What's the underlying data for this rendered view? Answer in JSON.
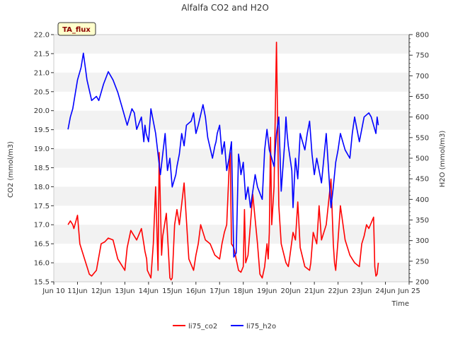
{
  "chart_data": {
    "type": "line",
    "title": "Alfalfa CO2 and H2O",
    "badge": "TA_flux",
    "xlabel": "Time",
    "ylabel_left": "CO2 (mmol/m3)",
    "ylabel_right": "H2O (mmol/m3)",
    "x_ticks": [
      "Jun 10",
      "11Jun",
      "12Jun",
      "13Jun",
      "14Jun",
      "15Jun",
      "16Jun",
      "17Jun",
      "18Jun",
      "19Jun",
      "20Jun",
      "21Jun",
      "22Jun",
      "23Jun",
      "24Jun",
      "Jun 25"
    ],
    "x_tick_days": [
      9.7,
      10.7,
      11.7,
      12.7,
      13.7,
      14.7,
      15.7,
      16.7,
      17.7,
      18.7,
      19.7,
      20.7,
      21.7,
      22.7,
      23.7,
      24.7
    ],
    "xlim": [
      9.7,
      24.7
    ],
    "ylim_left": [
      15.5,
      22.0
    ],
    "yticks_left": [
      "15.5",
      "16.0",
      "16.5",
      "17.0",
      "17.5",
      "18.0",
      "18.5",
      "19.0",
      "19.5",
      "20.0",
      "20.5",
      "21.0",
      "21.5",
      "22.0"
    ],
    "ylim_right": [
      200,
      800
    ],
    "yticks_right": [
      "200",
      "250",
      "300",
      "350",
      "400",
      "450",
      "500",
      "550",
      "600",
      "650",
      "700",
      "750",
      "800"
    ],
    "grid": "horizontal bands",
    "legend_position": "bottom-center",
    "colors": {
      "li75_co2": "#ff0000",
      "li75_h2o": "#0000ff",
      "band": "#f2f2f2",
      "badge_bg": "#ffffcc",
      "badge_text": "#8b0000"
    },
    "series": [
      {
        "name": "li75_co2",
        "axis": "left",
        "x": [
          10.3,
          10.4,
          10.5,
          10.55,
          10.7,
          10.8,
          11.0,
          11.2,
          11.3,
          11.5,
          11.7,
          11.85,
          12.0,
          12.2,
          12.4,
          12.7,
          12.8,
          12.95,
          13.1,
          13.2,
          13.4,
          13.5,
          13.55,
          13.62,
          13.65,
          13.8,
          13.9,
          14.0,
          14.1,
          14.15,
          14.25,
          14.3,
          14.45,
          14.6,
          14.65,
          14.7,
          14.75,
          14.8,
          14.9,
          15.0,
          15.2,
          15.4,
          15.6,
          15.7,
          15.8,
          15.9,
          16.1,
          16.3,
          16.5,
          16.7,
          16.8,
          16.9,
          17.0,
          17.1,
          17.15,
          17.2,
          17.3,
          17.5,
          17.6,
          17.7,
          17.75,
          17.8,
          17.9,
          18.1,
          18.3,
          18.4,
          18.5,
          18.6,
          18.7,
          18.75,
          18.8,
          18.85,
          18.9,
          19.0,
          19.1,
          19.2,
          19.3,
          19.5,
          19.6,
          19.65,
          19.8,
          19.9,
          20.0,
          20.1,
          20.3,
          20.5,
          20.55,
          20.65,
          20.8,
          20.9,
          21.0,
          21.2,
          21.4,
          21.5,
          21.55,
          21.6,
          21.7,
          21.8,
          22.0,
          22.2,
          22.4,
          22.6,
          22.7,
          22.8,
          22.9,
          23.0,
          23.2,
          23.25,
          23.3,
          23.35,
          23.4
        ],
        "values": [
          17.0,
          17.1,
          17.0,
          16.9,
          17.25,
          16.5,
          16.1,
          15.7,
          15.65,
          15.8,
          16.5,
          16.55,
          16.65,
          16.6,
          16.1,
          15.8,
          16.4,
          16.85,
          16.7,
          16.6,
          16.9,
          16.5,
          16.3,
          16.1,
          15.8,
          15.6,
          16.5,
          18.0,
          15.8,
          18.9,
          16.2,
          16.7,
          17.3,
          15.6,
          15.55,
          15.6,
          16.3,
          17.0,
          17.4,
          17.0,
          18.1,
          16.1,
          15.8,
          16.2,
          16.5,
          17.0,
          16.6,
          16.5,
          16.2,
          16.1,
          16.5,
          16.8,
          17.0,
          18.5,
          18.9,
          16.5,
          16.4,
          15.8,
          15.75,
          15.9,
          17.4,
          16.0,
          16.2,
          17.8,
          16.5,
          15.7,
          15.6,
          15.9,
          16.5,
          16.1,
          16.8,
          19.3,
          17.0,
          18.0,
          21.8,
          17.5,
          16.5,
          16.0,
          15.9,
          16.1,
          16.8,
          16.6,
          17.6,
          16.4,
          15.9,
          15.8,
          16.0,
          16.8,
          16.5,
          17.5,
          16.6,
          17.0,
          18.2,
          16.5,
          16.0,
          15.8,
          16.6,
          17.5,
          16.6,
          16.2,
          16.0,
          15.9,
          16.5,
          16.7,
          17.0,
          16.9,
          17.2,
          15.9,
          15.65,
          15.7,
          16.0
        ],
        "shape_notes": "daily cycle"
      },
      {
        "name": "li75_h2o",
        "axis": "right",
        "x": [
          10.3,
          10.4,
          10.5,
          10.7,
          10.85,
          10.95,
          11.1,
          11.3,
          11.5,
          11.6,
          11.8,
          12.0,
          12.2,
          12.4,
          12.6,
          12.7,
          12.8,
          13.0,
          13.1,
          13.2,
          13.4,
          13.5,
          13.55,
          13.6,
          13.7,
          13.8,
          14.0,
          14.2,
          14.3,
          14.4,
          14.5,
          14.6,
          14.7,
          14.85,
          14.9,
          15.0,
          15.1,
          15.2,
          15.3,
          15.5,
          15.6,
          15.7,
          15.8,
          16.0,
          16.1,
          16.2,
          16.4,
          16.5,
          16.55,
          16.6,
          16.7,
          16.8,
          16.9,
          17.0,
          17.1,
          17.2,
          17.3,
          17.4,
          17.5,
          17.55,
          17.6,
          17.7,
          17.8,
          17.9,
          18.0,
          18.2,
          18.3,
          18.5,
          18.6,
          18.7,
          18.8,
          19.0,
          19.1,
          19.2,
          19.3,
          19.45,
          19.5,
          19.55,
          19.6,
          19.75,
          19.8,
          19.9,
          20.0,
          20.1,
          20.2,
          20.3,
          20.4,
          20.5,
          20.6,
          20.7,
          20.8,
          21.0,
          21.2,
          21.4,
          21.5,
          21.6,
          21.7,
          21.8,
          22.0,
          22.2,
          22.3,
          22.4,
          22.6,
          22.8,
          23.0,
          23.1,
          23.2,
          23.3,
          23.35,
          23.4
        ],
        "values": [
          570,
          600,
          620,
          690,
          720,
          755,
          690,
          640,
          650,
          640,
          680,
          710,
          690,
          660,
          620,
          600,
          580,
          620,
          610,
          570,
          600,
          540,
          580,
          560,
          540,
          620,
          560,
          460,
          510,
          560,
          470,
          500,
          430,
          460,
          480,
          510,
          560,
          530,
          580,
          590,
          610,
          560,
          580,
          630,
          600,
          550,
          500,
          530,
          540,
          560,
          580,
          510,
          540,
          470,
          500,
          540,
          260,
          270,
          510,
          490,
          460,
          490,
          400,
          430,
          380,
          460,
          430,
          400,
          520,
          570,
          520,
          480,
          560,
          600,
          420,
          540,
          600,
          560,
          530,
          470,
          380,
          500,
          450,
          560,
          540,
          520,
          560,
          590,
          510,
          460,
          500,
          440,
          560,
          380,
          430,
          490,
          520,
          560,
          520,
          500,
          560,
          600,
          540,
          600,
          610,
          600,
          580,
          560,
          600,
          580
        ]
      }
    ],
    "legend": [
      "li75_co2",
      "li75_h2o"
    ]
  }
}
